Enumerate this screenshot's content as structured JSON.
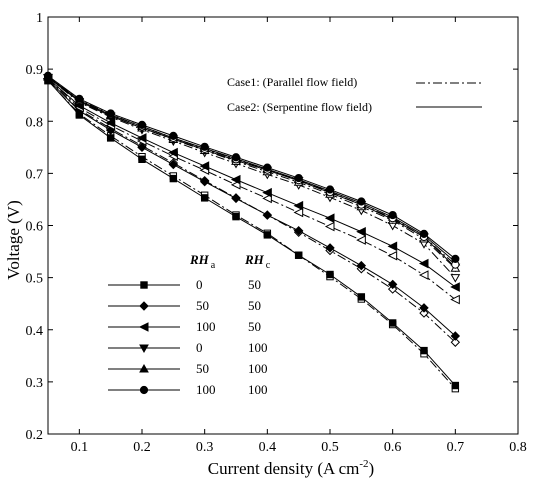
{
  "chart_data": {
    "type": "line",
    "xlabel": "Current density (A cm",
    "xlabel_sup": "-2",
    "xlabel_end": ")",
    "ylabel": "Voltage (V)",
    "xlim": [
      0.05,
      0.8
    ],
    "ylim": [
      0.2,
      1.0
    ],
    "xticks": [
      0.1,
      0.2,
      0.3,
      0.4,
      0.5,
      0.6,
      0.7,
      0.8
    ],
    "xtick_labels": [
      "0.1",
      "0.2",
      "0.3",
      "0.4",
      "0.5",
      "0.6",
      "0.7",
      "0.8"
    ],
    "yticks": [
      0.2,
      0.3,
      0.4,
      0.5,
      0.6,
      0.7,
      0.8,
      0.9,
      1.0
    ],
    "ytick_labels": [
      "0.2",
      "0.3",
      "0.4",
      "0.5",
      "0.6",
      "0.7",
      "0.8",
      "0.9",
      "1"
    ],
    "grid": false,
    "x": [
      0.05,
      0.1,
      0.15,
      0.2,
      0.25,
      0.3,
      0.35,
      0.4,
      0.45,
      0.5,
      0.55,
      0.6,
      0.65,
      0.7
    ],
    "case_legend": [
      {
        "label": "Case1: (Parallel flow field)",
        "style": "dashdot"
      },
      {
        "label": "Case2: (Serpentine flow field)",
        "style": "solid"
      }
    ],
    "rh_header": {
      "a_main": "RH",
      "a_sub": "a",
      "c_main": "RH",
      "c_sub": "c"
    },
    "series": [
      {
        "rh_a": "0",
        "rh_c": "50",
        "marker": "square",
        "serpentine": [
          0.878,
          0.812,
          0.768,
          0.727,
          0.69,
          0.653,
          0.617,
          0.582,
          0.543,
          0.506,
          0.463,
          0.413,
          0.36,
          0.293
        ],
        "parallel": [
          0.878,
          0.814,
          0.772,
          0.732,
          0.695,
          0.658,
          0.62,
          0.585,
          0.543,
          0.502,
          0.459,
          0.41,
          0.354,
          0.287
        ]
      },
      {
        "rh_a": "50",
        "rh_c": "50",
        "marker": "diamond",
        "serpentine": [
          0.88,
          0.82,
          0.783,
          0.75,
          0.717,
          0.684,
          0.652,
          0.62,
          0.59,
          0.557,
          0.523,
          0.487,
          0.442,
          0.388
        ],
        "parallel": [
          0.88,
          0.822,
          0.786,
          0.753,
          0.72,
          0.686,
          0.653,
          0.62,
          0.587,
          0.552,
          0.517,
          0.478,
          0.432,
          0.376
        ]
      },
      {
        "rh_a": "100",
        "rh_c": "50",
        "marker": "triangle-left",
        "serpentine": [
          0.882,
          0.83,
          0.797,
          0.768,
          0.74,
          0.714,
          0.688,
          0.663,
          0.638,
          0.614,
          0.588,
          0.56,
          0.527,
          0.482
        ],
        "parallel": [
          0.882,
          0.826,
          0.792,
          0.762,
          0.733,
          0.706,
          0.678,
          0.652,
          0.625,
          0.598,
          0.572,
          0.542,
          0.505,
          0.458
        ]
      },
      {
        "rh_a": "0",
        "rh_c": "100",
        "marker": "triangle-down",
        "serpentine": [
          0.884,
          0.838,
          0.81,
          0.787,
          0.766,
          0.745,
          0.725,
          0.706,
          0.686,
          0.663,
          0.64,
          0.612,
          0.578,
          0.52
        ],
        "parallel": [
          0.884,
          0.836,
          0.808,
          0.784,
          0.762,
          0.74,
          0.719,
          0.698,
          0.678,
          0.654,
          0.629,
          0.6,
          0.565,
          0.5
        ]
      },
      {
        "rh_a": "50",
        "rh_c": "100",
        "marker": "triangle-up",
        "serpentine": [
          0.885,
          0.84,
          0.812,
          0.79,
          0.768,
          0.748,
          0.728,
          0.708,
          0.688,
          0.666,
          0.643,
          0.616,
          0.581,
          0.53
        ],
        "parallel": [
          0.885,
          0.838,
          0.81,
          0.787,
          0.765,
          0.744,
          0.723,
          0.703,
          0.683,
          0.66,
          0.636,
          0.61,
          0.574,
          0.518
        ]
      },
      {
        "rh_a": "100",
        "rh_c": "100",
        "marker": "circle",
        "serpentine": [
          0.887,
          0.843,
          0.815,
          0.793,
          0.772,
          0.751,
          0.731,
          0.711,
          0.691,
          0.669,
          0.646,
          0.62,
          0.584,
          0.536
        ],
        "parallel": [
          0.887,
          0.841,
          0.813,
          0.79,
          0.768,
          0.747,
          0.727,
          0.707,
          0.687,
          0.664,
          0.64,
          0.614,
          0.578,
          0.525
        ]
      }
    ]
  }
}
